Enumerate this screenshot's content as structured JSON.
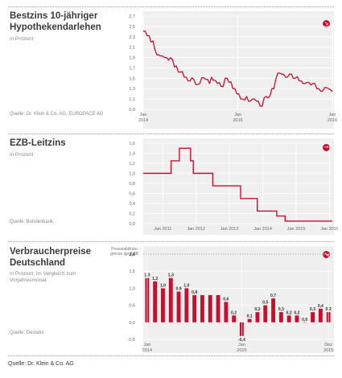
{
  "panels": [
    {
      "title_line1": "Bestzins 10-jähriger",
      "title_line2": "Hypothekendarlehen",
      "subtitle": "in Prozent",
      "source": "Quelle: Dr. Klein & Co. AG, EUROPACE AG",
      "trend_icon": "arrow-down-right-icon"
    },
    {
      "title_line1": "EZB-Leitzins",
      "title_line2": "",
      "subtitle": "in Prozent",
      "source": "Quelle: Bundesbank",
      "trend_icon": "arrow-right-icon"
    },
    {
      "title_line1": "Verbraucherpreise",
      "title_line2": "Deutschland",
      "subtitle": "in Prozent, im Vergleich zum Vorjahresmonat",
      "source": "Quelle: Destatis",
      "trend_icon": "arrow-down-right-icon"
    }
  ],
  "ezb_note": "Preisstabilitäts-\ngrenze der EZB",
  "footer": "Quelle: Dr. Klein & Co. AG",
  "colors": {
    "series": "#c8102e",
    "plot_bg": "#efefef",
    "text": "#3a3a3a",
    "muted": "#8a8a8a"
  },
  "chart_data": [
    {
      "type": "line",
      "ylim": [
        0.9,
        2.7
      ],
      "yticks": [
        "2,7",
        "2,5",
        "2,3",
        "2,1",
        "1,9",
        "1,7",
        "1,5",
        "1,3",
        "1,1",
        "0,9"
      ],
      "xticks": [
        {
          "label": "Jan\n2014"
        },
        {
          "label": "Jan\n2015"
        },
        {
          "label": "Jan\n2016"
        }
      ],
      "x_start": "2014-01",
      "x_end": "2016-01",
      "values": [
        2.41,
        2.41,
        2.32,
        2.32,
        2.2,
        2.22,
        2.05,
        1.95,
        1.95,
        1.93,
        1.93,
        1.9,
        1.9,
        1.85,
        1.9,
        1.86,
        1.72,
        1.74,
        1.62,
        1.62,
        1.63,
        1.52,
        1.52,
        1.45,
        1.45,
        1.51,
        1.47,
        1.38,
        1.38,
        1.4,
        1.51,
        1.51,
        1.48,
        1.48,
        1.4,
        1.52,
        1.46,
        1.46,
        1.4,
        1.42,
        1.34,
        1.34,
        1.5,
        1.5,
        1.42,
        1.43,
        1.3,
        1.3,
        1.2,
        1.2,
        1.1,
        1.1,
        1.08,
        1.15,
        1.06,
        1.06,
        1.1,
        1.1,
        1.06,
        1.06,
        0.96,
        0.96,
        1.12,
        1.15,
        1.12,
        1.16,
        1.3,
        1.3,
        1.48,
        1.6,
        1.6,
        1.58,
        1.58,
        1.52,
        1.52,
        1.58,
        1.58,
        1.5,
        1.5,
        1.53,
        1.45,
        1.45,
        1.4,
        1.4,
        1.42,
        1.42,
        1.37,
        1.4,
        1.4,
        1.3,
        1.3,
        1.25,
        1.25,
        1.32,
        1.32,
        1.3,
        1.28,
        1.24
      ]
    },
    {
      "type": "line",
      "ylim": [
        0,
        1.6
      ],
      "yticks": [
        "1,6",
        "1,4",
        "1,2",
        "1,0",
        "0,8",
        "0,6",
        "0,4",
        "0,2",
        "0,0"
      ],
      "xticks": [
        {
          "label": "Jan 2011"
        },
        {
          "label": "Jan 2012"
        },
        {
          "label": "Jan 2013"
        },
        {
          "label": "Jan 2014"
        },
        {
          "label": "Jan 2015"
        },
        {
          "label": "Jan 2016"
        }
      ],
      "x_start": "2010-06",
      "x_end": "2016-02",
      "steps": [
        {
          "from": "2010-06",
          "value": 1.0
        },
        {
          "from": "2011-04",
          "value": 1.25
        },
        {
          "from": "2011-07",
          "value": 1.5
        },
        {
          "from": "2011-11",
          "value": 1.25
        },
        {
          "from": "2011-12",
          "value": 1.0
        },
        {
          "from": "2012-07",
          "value": 0.75
        },
        {
          "from": "2013-05",
          "value": 0.5
        },
        {
          "from": "2013-11",
          "value": 0.25
        },
        {
          "from": "2014-06",
          "value": 0.15
        },
        {
          "from": "2014-09",
          "value": 0.05
        }
      ]
    },
    {
      "type": "bar",
      "ylim": [
        -0.5,
        2.0
      ],
      "yticks": [
        "2,0",
        "1,5",
        "1,0",
        "0,5",
        "0,0",
        "-0,5"
      ],
      "reference_line": 2.0,
      "xticks": [
        {
          "label": "Jan\n2014"
        },
        {
          "label": "Jan\n2015"
        },
        {
          "label": "Dez\n2015"
        }
      ],
      "categories": [
        "2014-01",
        "2014-02",
        "2014-03",
        "2014-04",
        "2014-05",
        "2014-06",
        "2014-07",
        "2014-08",
        "2014-09",
        "2014-10",
        "2014-11",
        "2014-12",
        "2015-01",
        "2015-02",
        "2015-03",
        "2015-04",
        "2015-05",
        "2015-06",
        "2015-07",
        "2015-08",
        "2015-09",
        "2015-10",
        "2015-11",
        "2015-12"
      ],
      "values": [
        1.3,
        1.2,
        1.0,
        1.3,
        0.9,
        1.0,
        0.8,
        0.8,
        0.8,
        0.8,
        0.6,
        0.2,
        -0.4,
        0.1,
        0.3,
        0.5,
        0.7,
        0.3,
        0.2,
        0.2,
        0.0,
        0.3,
        0.4,
        0.3
      ],
      "value_labels": [
        "1,3",
        "1,2",
        "1,0",
        "1,3",
        "0,9",
        "1,0",
        "0,8",
        "",
        "",
        "",
        "0,6",
        "0,2",
        "-0,4",
        "0,1",
        "0,3",
        "0,5",
        "0,7",
        "0,3",
        "0,2",
        "0,2",
        "0,0",
        "0,3",
        "0,4",
        "0,3"
      ]
    }
  ]
}
